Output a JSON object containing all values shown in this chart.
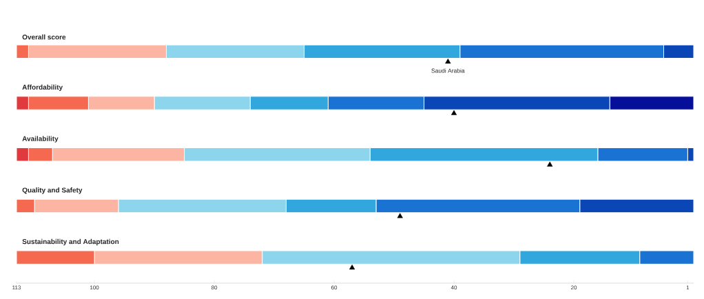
{
  "chart_data": {
    "type": "bar",
    "orientation": "horizontal",
    "stacked": true,
    "categories": [
      "Overall score",
      "Affordability",
      "Availability",
      "Quality and Safety",
      "Sustainability and Adaptation"
    ],
    "xlim": [
      113,
      0
    ],
    "xticks": [
      113,
      100,
      80,
      60,
      40,
      20,
      1
    ],
    "annotations": [
      {
        "text": "Saudi Arabia",
        "x": 41,
        "y": "Overall score"
      }
    ],
    "series": [
      {
        "color": "#050f9a",
        "values": [
          null,
          14,
          null,
          null,
          null
        ]
      },
      {
        "color": "#0a46b6",
        "values": [
          5,
          31,
          1,
          19,
          null
        ]
      },
      {
        "color": "#1a72d2",
        "values": [
          34,
          16,
          15,
          34,
          9
        ]
      },
      {
        "color": "#32a7de",
        "values": [
          26,
          13,
          38,
          15,
          20
        ]
      },
      {
        "color": "#8cd5ec",
        "values": [
          23,
          16,
          31,
          28,
          43
        ]
      },
      {
        "color": "#fcb5a3",
        "values": [
          23,
          11,
          22,
          14,
          28
        ]
      },
      {
        "color": "#f4694f",
        "values": [
          2,
          10,
          4,
          3,
          13
        ]
      },
      {
        "color": "#e03a3e",
        "values": [
          null,
          2,
          2,
          null,
          null
        ]
      },
      {
        "type": "scatter",
        "color": "#000000",
        "marker": "triangle",
        "values": [
          41,
          40,
          24,
          49,
          57
        ]
      }
    ]
  }
}
